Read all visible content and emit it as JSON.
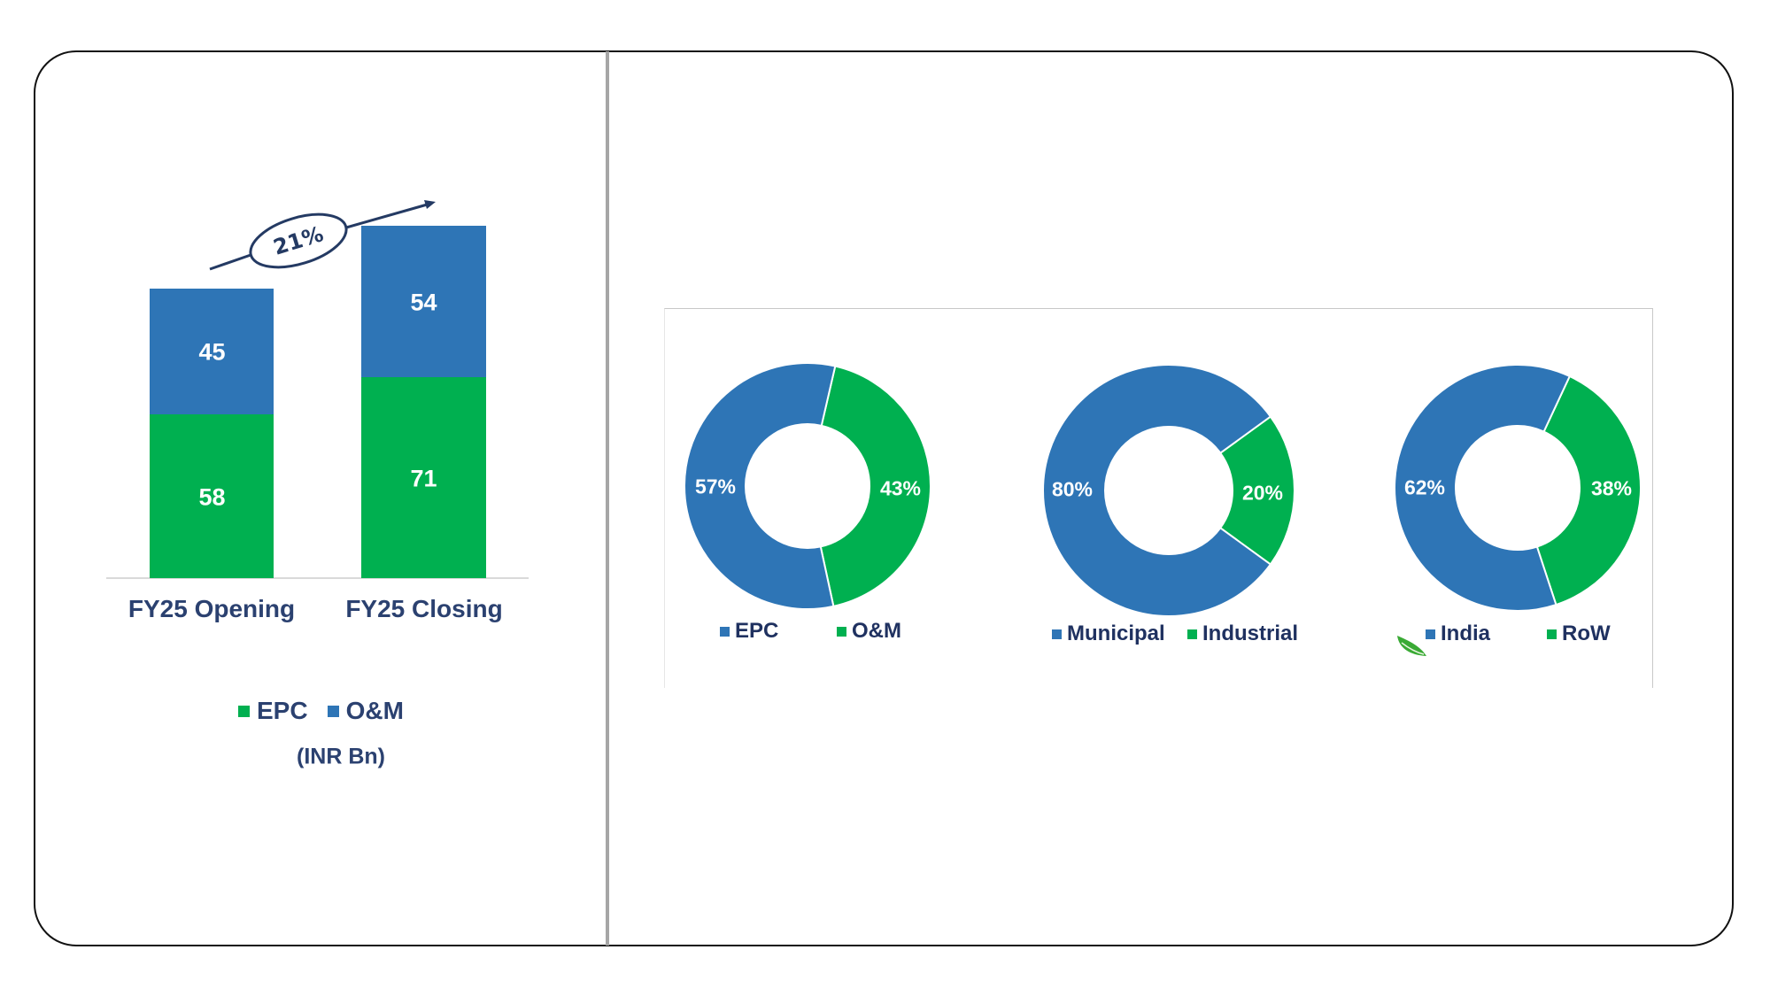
{
  "colors": {
    "epc_green": "#00b050",
    "om_blue": "#2e75b6",
    "text_navy": "#2b4170",
    "frame": "#111111",
    "divider": "#a6a6a6"
  },
  "bar_chart": {
    "growth_label": "21%",
    "categories": [
      "FY25 Opening",
      "FY25 Closing"
    ],
    "epc_values": [
      "58",
      "71"
    ],
    "om_values": [
      "45",
      "54"
    ],
    "legend": [
      {
        "label": "EPC",
        "color": "#00b050"
      },
      {
        "label": "O&M",
        "color": "#2e75b6"
      }
    ],
    "unit": "(INR Bn)"
  },
  "donuts": [
    {
      "slices": [
        {
          "label": "EPC",
          "pct": "57%",
          "color": "#2e75b6"
        },
        {
          "label": "O&M",
          "pct": "43%",
          "color": "#00b050"
        }
      ]
    },
    {
      "slices": [
        {
          "label": "Municipal",
          "pct": "80%",
          "color": "#2e75b6"
        },
        {
          "label": "Industrial",
          "pct": "20%",
          "color": "#00b050"
        }
      ]
    },
    {
      "slices": [
        {
          "label": "India",
          "pct": "62%",
          "color": "#2e75b6"
        },
        {
          "label": "RoW",
          "pct": "38%",
          "color": "#00b050"
        }
      ]
    }
  ],
  "chart_data": [
    {
      "type": "bar",
      "stacked": true,
      "title": "",
      "categories": [
        "FY25 Opening",
        "FY25 Closing"
      ],
      "series": [
        {
          "name": "EPC",
          "values": [
            58,
            71
          ],
          "color": "#00b050"
        },
        {
          "name": "O&M",
          "values": [
            45,
            54
          ],
          "color": "#2e75b6"
        }
      ],
      "totals": [
        103,
        125
      ],
      "annotations": [
        "21% growth arrow from FY25 Opening to FY25 Closing"
      ],
      "xlabel": "",
      "ylabel": "(INR Bn)",
      "grid": false,
      "legend_position": "bottom"
    },
    {
      "type": "pie",
      "donut": true,
      "categories": [
        "EPC",
        "O&M"
      ],
      "values": [
        57,
        43
      ],
      "legend_position": "bottom"
    },
    {
      "type": "pie",
      "donut": true,
      "categories": [
        "Municipal",
        "Industrial"
      ],
      "values": [
        80,
        20
      ],
      "legend_position": "bottom"
    },
    {
      "type": "pie",
      "donut": true,
      "categories": [
        "India",
        "RoW"
      ],
      "values": [
        62,
        38
      ],
      "legend_position": "bottom"
    }
  ]
}
